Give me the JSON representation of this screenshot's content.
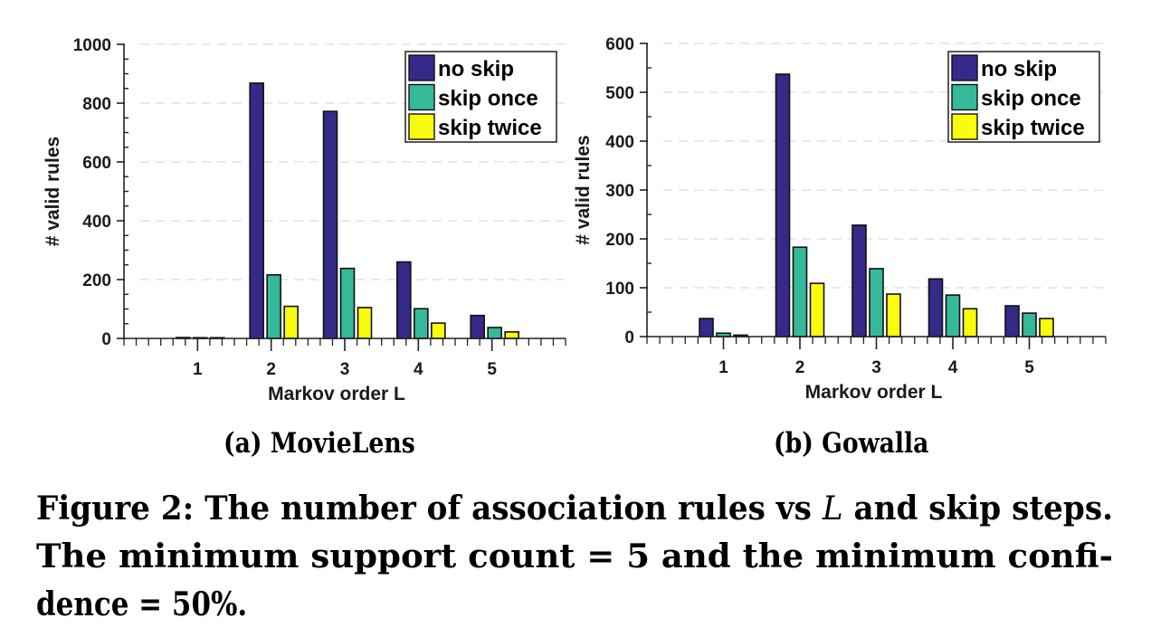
{
  "chart_data": [
    {
      "type": "bar",
      "title": "(a) MovieLens",
      "xlabel": "Markov order L",
      "ylabel": "# valid rules",
      "categories": [
        "1",
        "2",
        "3",
        "4",
        "5"
      ],
      "xlim": [
        0,
        6
      ],
      "ylim": [
        0,
        1000
      ],
      "yticks": [
        0,
        200,
        400,
        600,
        800,
        1000
      ],
      "ytick_labels": [
        "0",
        "200",
        "400",
        "600",
        "800",
        "1000"
      ],
      "grid": true,
      "legend": "top-right",
      "series": [
        {
          "name": "no skip",
          "color": "#352a87",
          "values": [
            3,
            868,
            772,
            260,
            78
          ]
        },
        {
          "name": "skip once",
          "color": "#36b89a",
          "values": [
            0,
            216,
            238,
            101,
            37
          ]
        },
        {
          "name": "skip twice",
          "color": "#f9fb0e",
          "values": [
            0,
            109,
            105,
            52,
            22
          ]
        }
      ]
    },
    {
      "type": "bar",
      "title": "(b) Gowalla",
      "xlabel": "Markov order L",
      "ylabel": "# valid rules",
      "categories": [
        "1",
        "2",
        "3",
        "4",
        "5"
      ],
      "xlim": [
        0,
        6
      ],
      "ylim": [
        0,
        600
      ],
      "yticks": [
        0,
        100,
        200,
        300,
        400,
        500,
        600
      ],
      "ytick_labels": [
        "0",
        "100",
        "200",
        "300",
        "400",
        "500",
        "600"
      ],
      "grid": true,
      "legend": "top-right",
      "series": [
        {
          "name": "no skip",
          "color": "#352a87",
          "values": [
            37,
            537,
            228,
            118,
            63
          ]
        },
        {
          "name": "skip once",
          "color": "#36b89a",
          "values": [
            7,
            183,
            139,
            85,
            48
          ]
        },
        {
          "name": "skip twice",
          "color": "#f9fb0e",
          "values": [
            3,
            109,
            87,
            57,
            37
          ]
        }
      ]
    }
  ],
  "subcaptions": [
    "(a) MovieLens",
    "(b) Gowalla"
  ],
  "caption": {
    "line1_prefix": "Figure 2: The number of association rules vs ",
    "line1_var": "L",
    "line1_suffix": " and skip steps.",
    "line2": "The minimum support count = 5 and the minimum confi-",
    "line3": "dence = 50%."
  }
}
